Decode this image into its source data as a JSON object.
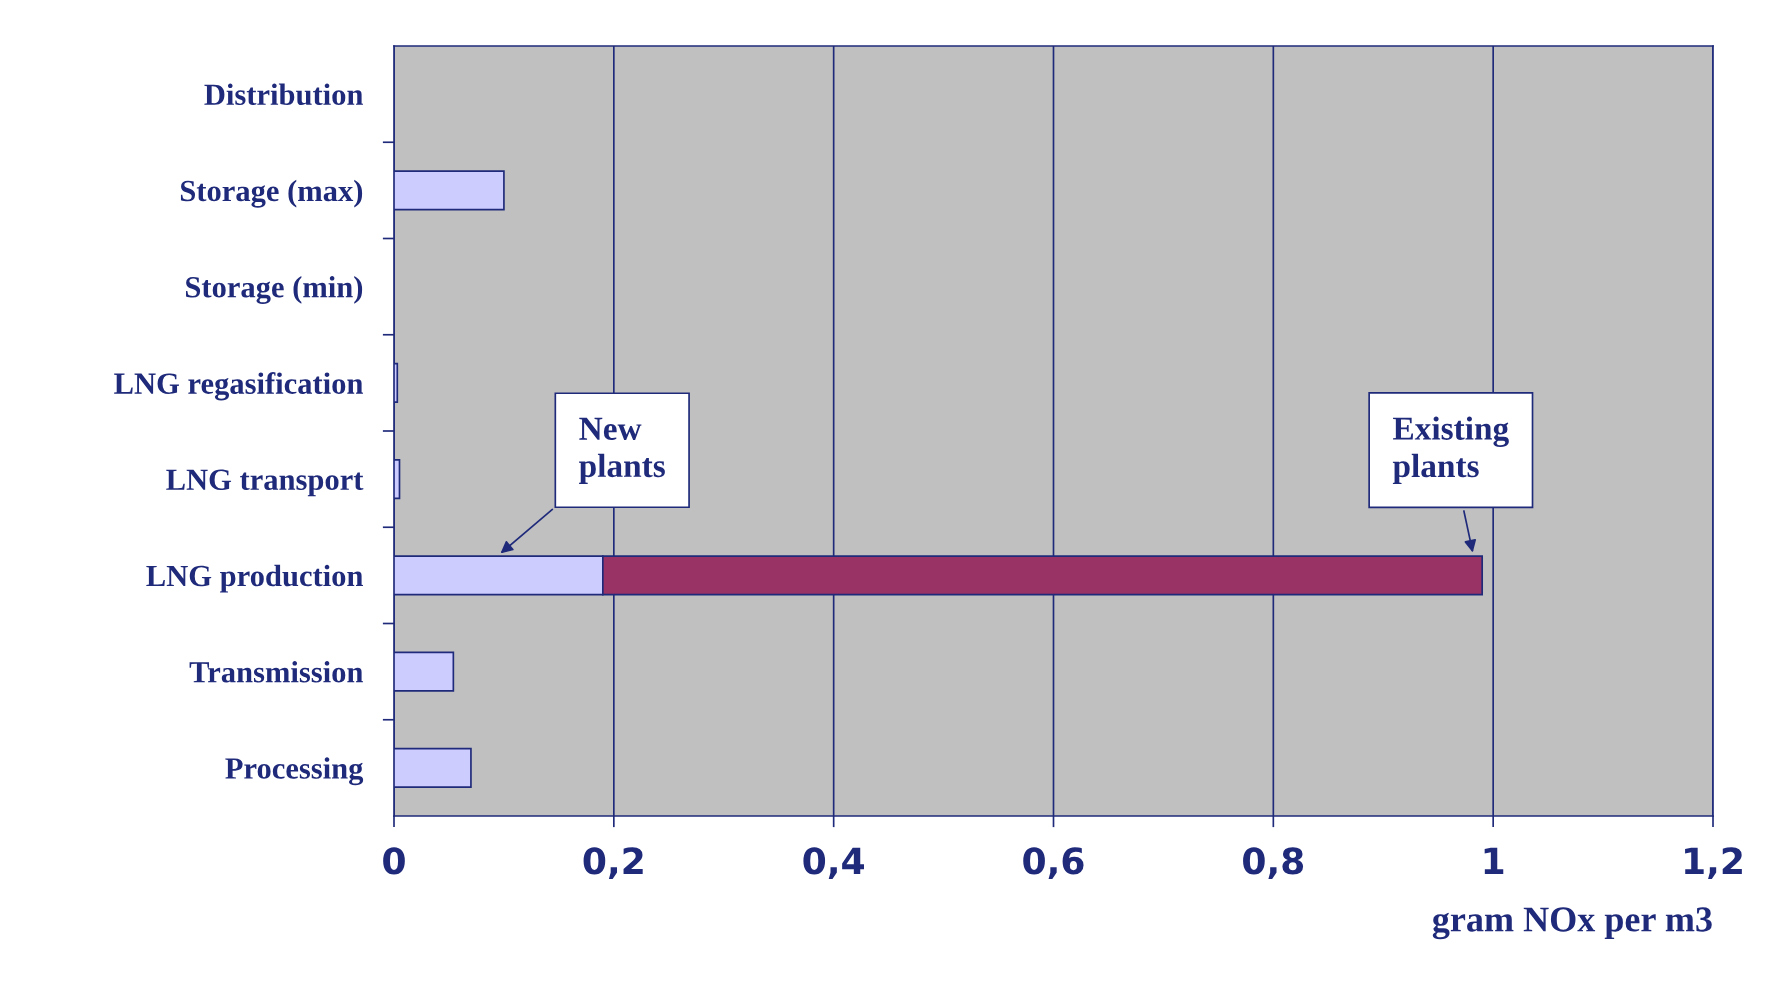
{
  "chart_data": {
    "type": "bar",
    "orientation": "horizontal",
    "stacked": true,
    "categories": [
      "Distribution",
      "Storage (max)",
      "Storage (min)",
      "LNG regasification",
      "LNG transport",
      "LNG production",
      "Transmission",
      "Processing"
    ],
    "series": [
      {
        "name": "New plants",
        "color": "#ccccff",
        "values": [
          null,
          0.1,
          null,
          0.003,
          0.005,
          0.19,
          0.054,
          0.07
        ]
      },
      {
        "name": "Existing plants",
        "color": "#993366",
        "values": [
          null,
          null,
          null,
          null,
          null,
          0.8,
          null,
          null
        ]
      }
    ],
    "xlabel": "gram NOx per m3",
    "xlim": [
      0,
      1.2
    ],
    "xticks": [
      0,
      {
        "value": 0.2,
        "label": "0,2"
      },
      {
        "value": 0.4,
        "label": "0,4"
      },
      {
        "value": 0.6,
        "label": "0,6"
      },
      {
        "value": 0.8,
        "label": "0,8"
      },
      1,
      {
        "value": 1.2,
        "label": "1,2"
      }
    ],
    "grid": "x",
    "legend": false
  }
}
